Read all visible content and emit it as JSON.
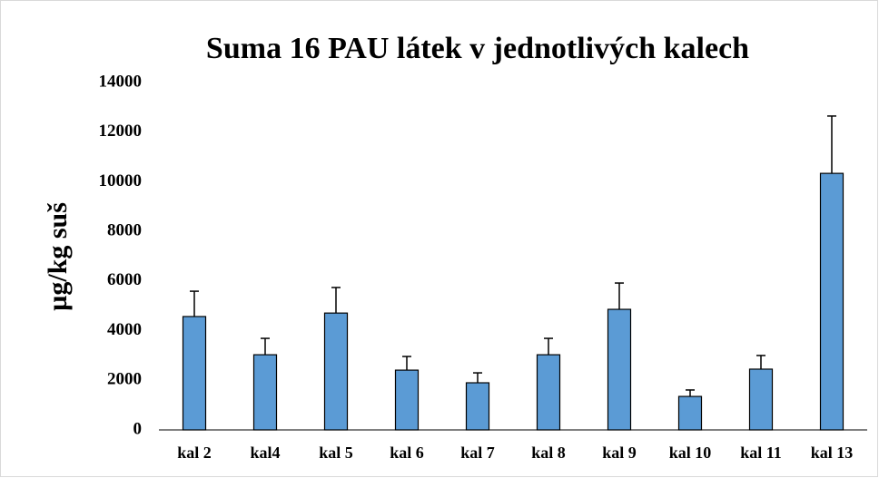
{
  "chart_data": {
    "type": "bar",
    "title": "Suma 16 PAU látek v jednotlivých kalech",
    "y_label": "µg/kg suš",
    "categories": [
      "kal 2",
      "kal4",
      "kal 5",
      "kal 6",
      "kal 7",
      "kal 8",
      "kal 9",
      "kal 10",
      "kal 11",
      "kal 13"
    ],
    "values": [
      4570,
      3030,
      4710,
      2410,
      1900,
      3030,
      4860,
      1350,
      2450,
      10340
    ],
    "errors": [
      1020,
      660,
      1030,
      550,
      400,
      660,
      1060,
      260,
      550,
      2310
    ],
    "color": "#5b9bd5",
    "ylim": [
      0,
      14000
    ],
    "yticks": [
      0,
      2000,
      4000,
      6000,
      8000,
      10000,
      12000,
      14000
    ],
    "grid": false
  }
}
